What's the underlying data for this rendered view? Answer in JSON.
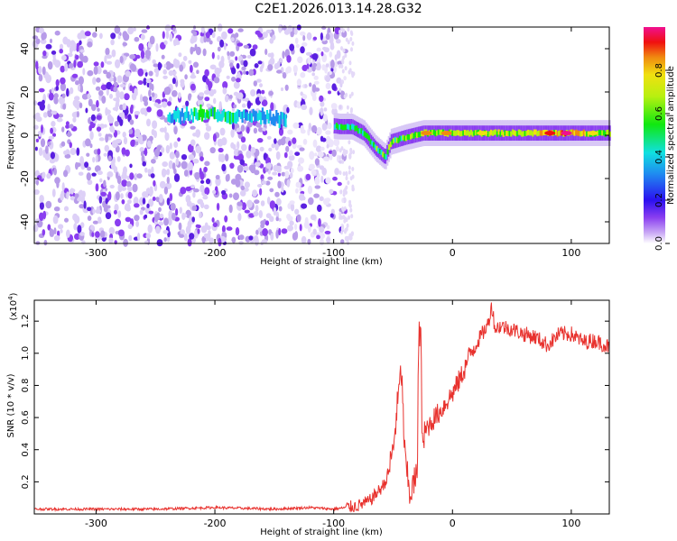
{
  "title": "C2E1.2026.013.14.28.G32",
  "chart_data": [
    {
      "type": "heatmap",
      "xlabel": "Height of straight line (km)",
      "ylabel": "Frequency (Hz)",
      "xlim": [
        -352,
        132
      ],
      "ylim": [
        -50,
        50
      ],
      "x_ticks": [
        -300,
        -200,
        -100,
        0,
        100
      ],
      "y_ticks": [
        -40,
        -20,
        0,
        20,
        40
      ],
      "colorbar": {
        "label": "Normalized spectral amplitude",
        "range": [
          0,
          1
        ],
        "ticks": [
          0.0,
          0.2,
          0.4,
          0.6,
          0.8
        ],
        "tick_labels": [
          "0.0",
          "0.2",
          "0.4",
          "0.6",
          "0.8"
        ]
      },
      "features": {
        "noise_region_x": [
          -352,
          -90
        ],
        "strong_band": [
          [
            -230,
            9
          ],
          [
            -210,
            10
          ],
          [
            -190,
            9
          ],
          [
            -160,
            9
          ],
          [
            -150,
            8
          ],
          [
            -95,
            4
          ],
          [
            -85,
            4
          ],
          [
            -75,
            1
          ],
          [
            -65,
            -6
          ],
          [
            -57,
            -10
          ],
          [
            -52,
            -3
          ],
          [
            -40,
            -1
          ],
          [
            -25,
            1
          ],
          [
            0,
            1
          ],
          [
            50,
            1
          ],
          [
            100,
            1
          ],
          [
            132,
            1
          ]
        ],
        "band_peak_amplitude": [
          [
            -230,
            0.35
          ],
          [
            -210,
            0.45
          ],
          [
            -150,
            0.3
          ],
          [
            -90,
            0.45
          ],
          [
            -60,
            0.5
          ],
          [
            -20,
            0.65
          ],
          [
            20,
            0.6
          ],
          [
            80,
            0.75
          ],
          [
            100,
            0.85
          ],
          [
            120,
            0.6
          ]
        ]
      }
    },
    {
      "type": "line",
      "xlabel": "Height of straight line (km)",
      "ylabel": "SNR (10 * v/v)",
      "y_exponent_label": "(x10",
      "y_exponent_power": "4",
      "y_exponent_close": ")",
      "xlim": [
        -352,
        132
      ],
      "ylim": [
        0,
        1.33
      ],
      "x_ticks": [
        -300,
        -200,
        -100,
        0,
        100
      ],
      "y_ticks": [
        0.2,
        0.4,
        0.6,
        0.8,
        1.0,
        1.2
      ],
      "y_tick_labels": [
        "0.2",
        "0.4",
        "0.6",
        "0.8",
        "1.0",
        "1.2"
      ],
      "series": [
        {
          "color": "#e8322e",
          "x": [
            -352,
            -300,
            -250,
            -200,
            -150,
            -120,
            -100,
            -90,
            -80,
            -70,
            -65,
            -60,
            -55,
            -50,
            -46,
            -43,
            -40,
            -36,
            -32,
            -28,
            -25,
            -22,
            -20,
            -15,
            -10,
            -5,
            0,
            5,
            10,
            15,
            20,
            25,
            30,
            33,
            36,
            40,
            50,
            60,
            70,
            80,
            90,
            100,
            110,
            120,
            132
          ],
          "y": [
            0.03,
            0.03,
            0.03,
            0.04,
            0.03,
            0.04,
            0.03,
            0.04,
            0.05,
            0.08,
            0.12,
            0.16,
            0.22,
            0.4,
            0.7,
            0.9,
            0.35,
            0.12,
            0.2,
            0.3,
            0.45,
            0.52,
            0.55,
            0.6,
            0.64,
            0.7,
            0.75,
            0.82,
            0.9,
            1.0,
            1.06,
            1.12,
            1.18,
            1.3,
            1.15,
            1.17,
            1.15,
            1.12,
            1.1,
            1.05,
            1.12,
            1.12,
            1.07,
            1.08,
            1.04
          ]
        }
      ]
    }
  ]
}
